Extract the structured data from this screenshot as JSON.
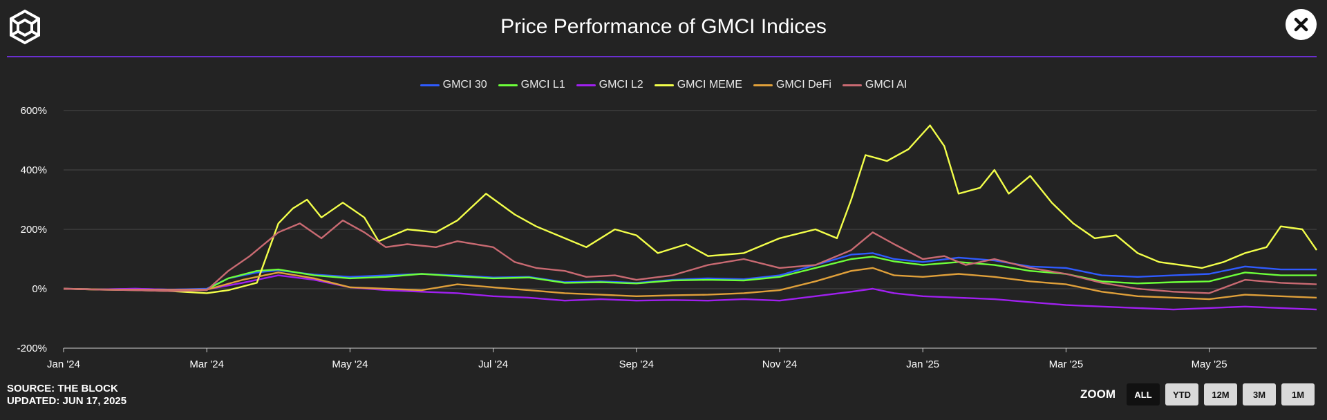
{
  "header": {
    "title": "Price Performance of GMCI Indices",
    "close_label": "✕"
  },
  "footer": {
    "source": "SOURCE: THE BLOCK",
    "updated": "UPDATED: JUN 17, 2025"
  },
  "zoom": {
    "label": "ZOOM",
    "buttons": [
      "ALL",
      "YTD",
      "12M",
      "3M",
      "1M"
    ],
    "active": "ALL"
  },
  "colors": {
    "background": "#232323",
    "divider": "#6a2fd0",
    "grid": "#4a4a4a"
  },
  "chart_data": {
    "type": "line",
    "title": "Price Performance of GMCI Indices",
    "xlabel": "",
    "ylabel": "",
    "ylim": [
      -200,
      600
    ],
    "xlim": [
      0,
      17.5
    ],
    "yticks": [
      600,
      400,
      200,
      0,
      -200
    ],
    "ytick_labels": [
      "600%",
      "400%",
      "200%",
      "0%",
      "-200%"
    ],
    "xticks": [
      0,
      2,
      4,
      6,
      8,
      10,
      12,
      14,
      16
    ],
    "xtick_labels": [
      "Jan '24",
      "Mar '24",
      "May '24",
      "Jul '24",
      "Sep '24",
      "Nov '24",
      "Jan '25",
      "Mar '25",
      "May '25"
    ],
    "legend_position": "top-center",
    "series": [
      {
        "name": "GMCI 30",
        "color": "#2f5bff",
        "points": [
          [
            0,
            0
          ],
          [
            0.5,
            -2
          ],
          [
            1,
            0
          ],
          [
            1.5,
            -3
          ],
          [
            2,
            0
          ],
          [
            2.3,
            35
          ],
          [
            2.7,
            55
          ],
          [
            3,
            62
          ],
          [
            3.5,
            48
          ],
          [
            4,
            40
          ],
          [
            4.5,
            45
          ],
          [
            5,
            50
          ],
          [
            5.5,
            45
          ],
          [
            6,
            38
          ],
          [
            6.5,
            40
          ],
          [
            7,
            22
          ],
          [
            7.5,
            25
          ],
          [
            8,
            20
          ],
          [
            8.5,
            30
          ],
          [
            9,
            35
          ],
          [
            9.5,
            32
          ],
          [
            10,
            45
          ],
          [
            10.5,
            80
          ],
          [
            11,
            115
          ],
          [
            11.3,
            120
          ],
          [
            11.6,
            100
          ],
          [
            12,
            90
          ],
          [
            12.5,
            105
          ],
          [
            13,
            95
          ],
          [
            13.5,
            75
          ],
          [
            14,
            70
          ],
          [
            14.5,
            45
          ],
          [
            15,
            40
          ],
          [
            15.5,
            45
          ],
          [
            16,
            50
          ],
          [
            16.5,
            75
          ],
          [
            17,
            65
          ],
          [
            17.5,
            65
          ]
        ]
      },
      {
        "name": "GMCI L1",
        "color": "#6dff3a",
        "points": [
          [
            0,
            0
          ],
          [
            0.5,
            -2
          ],
          [
            1,
            -1
          ],
          [
            1.5,
            -3
          ],
          [
            2,
            -2
          ],
          [
            2.3,
            35
          ],
          [
            2.7,
            60
          ],
          [
            3,
            65
          ],
          [
            3.5,
            45
          ],
          [
            4,
            35
          ],
          [
            4.5,
            40
          ],
          [
            5,
            50
          ],
          [
            5.5,
            42
          ],
          [
            6,
            35
          ],
          [
            6.5,
            38
          ],
          [
            7,
            20
          ],
          [
            7.5,
            22
          ],
          [
            8,
            18
          ],
          [
            8.5,
            28
          ],
          [
            9,
            30
          ],
          [
            9.5,
            28
          ],
          [
            10,
            40
          ],
          [
            10.5,
            70
          ],
          [
            11,
            100
          ],
          [
            11.3,
            108
          ],
          [
            11.6,
            92
          ],
          [
            12,
            80
          ],
          [
            12.5,
            90
          ],
          [
            13,
            80
          ],
          [
            13.5,
            60
          ],
          [
            14,
            50
          ],
          [
            14.5,
            25
          ],
          [
            15,
            18
          ],
          [
            15.5,
            22
          ],
          [
            16,
            25
          ],
          [
            16.5,
            55
          ],
          [
            17,
            45
          ],
          [
            17.5,
            45
          ]
        ]
      },
      {
        "name": "GMCI L2",
        "color": "#a020f0",
        "points": [
          [
            0,
            0
          ],
          [
            0.5,
            -2
          ],
          [
            1,
            0
          ],
          [
            1.5,
            -3
          ],
          [
            2,
            -2
          ],
          [
            2.5,
            20
          ],
          [
            3,
            45
          ],
          [
            3.5,
            30
          ],
          [
            4,
            5
          ],
          [
            4.5,
            -5
          ],
          [
            5,
            -10
          ],
          [
            5.5,
            -15
          ],
          [
            6,
            -25
          ],
          [
            6.5,
            -30
          ],
          [
            7,
            -40
          ],
          [
            7.5,
            -35
          ],
          [
            8,
            -40
          ],
          [
            8.5,
            -38
          ],
          [
            9,
            -40
          ],
          [
            9.5,
            -35
          ],
          [
            10,
            -40
          ],
          [
            10.5,
            -25
          ],
          [
            11,
            -10
          ],
          [
            11.3,
            0
          ],
          [
            11.6,
            -15
          ],
          [
            12,
            -25
          ],
          [
            12.5,
            -30
          ],
          [
            13,
            -35
          ],
          [
            13.5,
            -45
          ],
          [
            14,
            -55
          ],
          [
            14.5,
            -60
          ],
          [
            15,
            -65
          ],
          [
            15.5,
            -70
          ],
          [
            16,
            -65
          ],
          [
            16.5,
            -60
          ],
          [
            17,
            -65
          ],
          [
            17.5,
            -70
          ]
        ]
      },
      {
        "name": "GMCI MEME",
        "color": "#f3ff4a",
        "points": [
          [
            0,
            0
          ],
          [
            0.5,
            -3
          ],
          [
            1,
            -5
          ],
          [
            1.5,
            -8
          ],
          [
            2,
            -15
          ],
          [
            2.3,
            -5
          ],
          [
            2.7,
            20
          ],
          [
            3,
            220
          ],
          [
            3.2,
            270
          ],
          [
            3.4,
            300
          ],
          [
            3.6,
            240
          ],
          [
            3.9,
            290
          ],
          [
            4.2,
            240
          ],
          [
            4.4,
            160
          ],
          [
            4.8,
            200
          ],
          [
            5.2,
            190
          ],
          [
            5.5,
            230
          ],
          [
            5.9,
            320
          ],
          [
            6.3,
            250
          ],
          [
            6.6,
            210
          ],
          [
            7,
            170
          ],
          [
            7.3,
            140
          ],
          [
            7.7,
            200
          ],
          [
            8,
            180
          ],
          [
            8.3,
            120
          ],
          [
            8.7,
            150
          ],
          [
            9,
            110
          ],
          [
            9.5,
            120
          ],
          [
            10,
            170
          ],
          [
            10.5,
            200
          ],
          [
            10.8,
            170
          ],
          [
            11,
            300
          ],
          [
            11.2,
            450
          ],
          [
            11.5,
            430
          ],
          [
            11.8,
            470
          ],
          [
            12.1,
            550
          ],
          [
            12.3,
            480
          ],
          [
            12.5,
            320
          ],
          [
            12.8,
            340
          ],
          [
            13,
            400
          ],
          [
            13.2,
            320
          ],
          [
            13.5,
            380
          ],
          [
            13.8,
            290
          ],
          [
            14.1,
            220
          ],
          [
            14.4,
            170
          ],
          [
            14.7,
            180
          ],
          [
            15,
            120
          ],
          [
            15.3,
            90
          ],
          [
            15.6,
            80
          ],
          [
            15.9,
            70
          ],
          [
            16.2,
            90
          ],
          [
            16.5,
            120
          ],
          [
            16.8,
            140
          ],
          [
            17,
            210
          ],
          [
            17.3,
            200
          ],
          [
            17.5,
            130
          ]
        ]
      },
      {
        "name": "GMCI DeFi",
        "color": "#e0a03a",
        "points": [
          [
            0,
            0
          ],
          [
            0.5,
            -2
          ],
          [
            1,
            -3
          ],
          [
            1.5,
            -5
          ],
          [
            2,
            -3
          ],
          [
            2.5,
            30
          ],
          [
            3,
            55
          ],
          [
            3.5,
            35
          ],
          [
            4,
            5
          ],
          [
            4.5,
            0
          ],
          [
            5,
            -5
          ],
          [
            5.5,
            15
          ],
          [
            6,
            5
          ],
          [
            6.5,
            -5
          ],
          [
            7,
            -15
          ],
          [
            7.5,
            -20
          ],
          [
            8,
            -25
          ],
          [
            8.5,
            -22
          ],
          [
            9,
            -20
          ],
          [
            9.5,
            -15
          ],
          [
            10,
            -5
          ],
          [
            10.5,
            25
          ],
          [
            11,
            60
          ],
          [
            11.3,
            70
          ],
          [
            11.6,
            45
          ],
          [
            12,
            40
          ],
          [
            12.5,
            50
          ],
          [
            13,
            40
          ],
          [
            13.5,
            25
          ],
          [
            14,
            15
          ],
          [
            14.5,
            -10
          ],
          [
            15,
            -25
          ],
          [
            15.5,
            -30
          ],
          [
            16,
            -35
          ],
          [
            16.5,
            -20
          ],
          [
            17,
            -25
          ],
          [
            17.5,
            -30
          ]
        ]
      },
      {
        "name": "GMCI AI",
        "color": "#c96a72",
        "points": [
          [
            0,
            0
          ],
          [
            0.5,
            -3
          ],
          [
            1,
            -5
          ],
          [
            1.5,
            -8
          ],
          [
            2,
            -5
          ],
          [
            2.3,
            60
          ],
          [
            2.6,
            110
          ],
          [
            3,
            190
          ],
          [
            3.3,
            220
          ],
          [
            3.6,
            170
          ],
          [
            3.9,
            230
          ],
          [
            4.2,
            190
          ],
          [
            4.5,
            140
          ],
          [
            4.8,
            150
          ],
          [
            5.2,
            140
          ],
          [
            5.5,
            160
          ],
          [
            6,
            140
          ],
          [
            6.3,
            90
          ],
          [
            6.6,
            70
          ],
          [
            7,
            60
          ],
          [
            7.3,
            40
          ],
          [
            7.7,
            45
          ],
          [
            8,
            30
          ],
          [
            8.5,
            45
          ],
          [
            9,
            80
          ],
          [
            9.5,
            100
          ],
          [
            10,
            70
          ],
          [
            10.5,
            80
          ],
          [
            11,
            130
          ],
          [
            11.3,
            190
          ],
          [
            11.6,
            150
          ],
          [
            12,
            100
          ],
          [
            12.3,
            110
          ],
          [
            12.6,
            80
          ],
          [
            13,
            100
          ],
          [
            13.5,
            70
          ],
          [
            14,
            50
          ],
          [
            14.5,
            20
          ],
          [
            15,
            0
          ],
          [
            15.5,
            -10
          ],
          [
            16,
            -15
          ],
          [
            16.5,
            30
          ],
          [
            17,
            20
          ],
          [
            17.5,
            15
          ]
        ]
      }
    ]
  }
}
